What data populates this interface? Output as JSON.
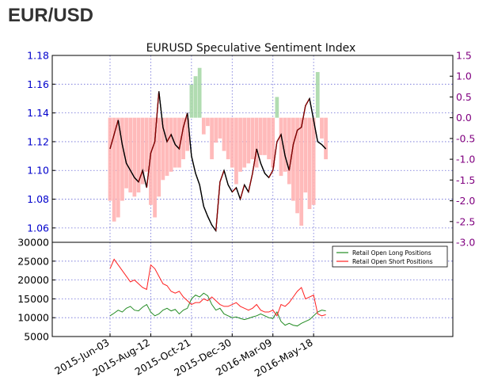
{
  "page": {
    "heading": "EUR/USD"
  },
  "colors": {
    "price": "#000000",
    "price_up": "#8b0000",
    "sentiment_negative": "#ffb3b3",
    "sentiment_positive": "#a8d8a8",
    "long_line": "#228b22",
    "short_line": "#ff2020",
    "left_axis": "#0000cc",
    "right_axis": "#800080",
    "grid": "#6b6bd6"
  },
  "chart_data": [
    {
      "type": "line",
      "title": "EURUSD Speculative Sentiment Index",
      "left_axis": {
        "ticks": [
          "1.18",
          "1.16",
          "1.14",
          "1.12",
          "1.10",
          "1.08",
          "1.06"
        ],
        "ylim": [
          1.05,
          1.18
        ]
      },
      "right_axis": {
        "ticks": [
          "1.5",
          "1.0",
          "0.5",
          "0.0",
          "-0.5",
          "-1.0",
          "-1.5",
          "-2.0",
          "-2.5",
          "-3.0"
        ],
        "ylim": [
          -3.0,
          1.5
        ]
      },
      "grid": true,
      "series": [
        {
          "axis": "left",
          "dates": [
            "2015-06-03",
            "2015-06-10",
            "2015-06-17",
            "2015-06-24",
            "2015-07-01",
            "2015-07-08",
            "2015-07-15",
            "2015-07-22",
            "2015-07-29",
            "2015-08-05",
            "2015-08-12",
            "2015-08-19",
            "2015-08-26",
            "2015-09-02",
            "2015-09-09",
            "2015-09-16",
            "2015-09-23",
            "2015-09-30",
            "2015-10-07",
            "2015-10-14",
            "2015-10-21",
            "2015-10-28",
            "2015-11-04",
            "2015-11-11",
            "2015-11-18",
            "2015-11-25",
            "2015-12-02",
            "2015-12-09",
            "2015-12-16",
            "2015-12-23",
            "2015-12-30",
            "2016-01-06",
            "2016-01-13",
            "2016-01-20",
            "2016-01-27",
            "2016-02-03",
            "2016-02-10",
            "2016-02-17",
            "2016-02-24",
            "2016-03-02",
            "2016-03-09",
            "2016-03-16",
            "2016-03-23",
            "2016-03-30",
            "2016-04-06",
            "2016-04-13",
            "2016-04-20",
            "2016-04-27",
            "2016-05-04",
            "2016-05-11",
            "2016-05-18",
            "2016-05-25",
            "2016-06-01",
            "2016-06-08"
          ],
          "values": [
            1.115,
            1.125,
            1.135,
            1.118,
            1.105,
            1.1,
            1.095,
            1.092,
            1.1,
            1.088,
            1.112,
            1.12,
            1.155,
            1.13,
            1.12,
            1.125,
            1.118,
            1.115,
            1.13,
            1.14,
            1.11,
            1.098,
            1.09,
            1.075,
            1.068,
            1.062,
            1.058,
            1.092,
            1.1,
            1.09,
            1.085,
            1.088,
            1.08,
            1.09,
            1.085,
            1.098,
            1.115,
            1.105,
            1.098,
            1.095,
            1.1,
            1.12,
            1.125,
            1.11,
            1.1,
            1.118,
            1.128,
            1.13,
            1.145,
            1.15,
            1.135,
            1.12,
            1.118,
            1.115
          ]
        },
        {
          "axis": "right",
          "dates": [
            "2015-06-03",
            "2015-06-10",
            "2015-06-17",
            "2015-06-24",
            "2015-07-01",
            "2015-07-08",
            "2015-07-15",
            "2015-07-22",
            "2015-07-29",
            "2015-08-05",
            "2015-08-12",
            "2015-08-19",
            "2015-08-26",
            "2015-09-02",
            "2015-09-09",
            "2015-09-16",
            "2015-09-23",
            "2015-09-30",
            "2015-10-07",
            "2015-10-14",
            "2015-10-21",
            "2015-10-28",
            "2015-11-04",
            "2015-11-11",
            "2015-11-18",
            "2015-11-25",
            "2015-12-02",
            "2015-12-09",
            "2015-12-16",
            "2015-12-23",
            "2015-12-30",
            "2016-01-06",
            "2016-01-13",
            "2016-01-20",
            "2016-01-27",
            "2016-02-03",
            "2016-02-10",
            "2016-02-17",
            "2016-02-24",
            "2016-03-02",
            "2016-03-09",
            "2016-03-16",
            "2016-03-23",
            "2016-03-30",
            "2016-04-06",
            "2016-04-13",
            "2016-04-20",
            "2016-04-27",
            "2016-05-04",
            "2016-05-11",
            "2016-05-18",
            "2016-05-25",
            "2016-06-01",
            "2016-06-08"
          ],
          "values": [
            -2.0,
            -2.5,
            -2.4,
            -2.0,
            -1.7,
            -1.8,
            -1.9,
            -1.8,
            -1.6,
            -1.3,
            -2.1,
            -2.4,
            -1.9,
            -1.5,
            -1.4,
            -1.3,
            -1.2,
            -1.2,
            -1.0,
            -0.8,
            0.8,
            1.0,
            1.2,
            -0.4,
            -0.2,
            -1.0,
            -0.6,
            -0.5,
            -0.8,
            -1.0,
            -1.2,
            -1.6,
            -1.3,
            -1.2,
            -1.1,
            -1.0,
            -1.2,
            -0.9,
            -0.9,
            -1.0,
            -1.2,
            0.5,
            -1.4,
            -1.3,
            -1.6,
            -2.0,
            -2.3,
            -2.6,
            -1.8,
            -2.2,
            -2.1,
            1.1,
            -0.5,
            -1.0
          ]
        }
      ]
    },
    {
      "type": "line",
      "x_tick_labels": [
        "2015-Jun-03",
        "2015-Aug-12",
        "2015-Oct-21",
        "2015-Dec-30",
        "2016-Mar-09",
        "2016-May-18"
      ],
      "y_ticks": [
        "30000",
        "25000",
        "20000",
        "15000",
        "10000",
        "5000"
      ],
      "ylim": [
        5000,
        30000
      ],
      "grid": true,
      "legend_position": "top-right",
      "series": [
        {
          "name": "Retail Open Long Positions",
          "dates": [
            "2015-06-03",
            "2015-06-10",
            "2015-06-17",
            "2015-06-24",
            "2015-07-01",
            "2015-07-08",
            "2015-07-15",
            "2015-07-22",
            "2015-07-29",
            "2015-08-05",
            "2015-08-12",
            "2015-08-19",
            "2015-08-26",
            "2015-09-02",
            "2015-09-09",
            "2015-09-16",
            "2015-09-23",
            "2015-09-30",
            "2015-10-07",
            "2015-10-14",
            "2015-10-21",
            "2015-10-28",
            "2015-11-04",
            "2015-11-11",
            "2015-11-18",
            "2015-11-25",
            "2015-12-02",
            "2015-12-09",
            "2015-12-16",
            "2015-12-23",
            "2015-12-30",
            "2016-01-06",
            "2016-01-13",
            "2016-01-20",
            "2016-01-27",
            "2016-02-03",
            "2016-02-10",
            "2016-02-17",
            "2016-02-24",
            "2016-03-02",
            "2016-03-09",
            "2016-03-16",
            "2016-03-23",
            "2016-03-30",
            "2016-04-06",
            "2016-04-13",
            "2016-04-20",
            "2016-04-27",
            "2016-05-04",
            "2016-05-11",
            "2016-05-18",
            "2016-05-25",
            "2016-06-01",
            "2016-06-08"
          ],
          "values": [
            10500,
            11200,
            12000,
            11500,
            12500,
            13000,
            12000,
            11800,
            12800,
            13500,
            11500,
            10500,
            11000,
            12000,
            12500,
            11800,
            12200,
            11000,
            12000,
            12500,
            15000,
            16000,
            15500,
            16500,
            15800,
            13500,
            12000,
            12500,
            11000,
            10500,
            10000,
            10200,
            9800,
            9500,
            9800,
            10200,
            10500,
            11000,
            10500,
            10000,
            9800,
            11500,
            9000,
            8000,
            8500,
            8000,
            7800,
            8500,
            9000,
            9500,
            10500,
            11500,
            12000,
            11800
          ]
        },
        {
          "name": "Retail Open Short Positions",
          "dates": [
            "2015-06-03",
            "2015-06-10",
            "2015-06-17",
            "2015-06-24",
            "2015-07-01",
            "2015-07-08",
            "2015-07-15",
            "2015-07-22",
            "2015-07-29",
            "2015-08-05",
            "2015-08-12",
            "2015-08-19",
            "2015-08-26",
            "2015-09-02",
            "2015-09-09",
            "2015-09-16",
            "2015-09-23",
            "2015-09-30",
            "2015-10-07",
            "2015-10-14",
            "2015-10-21",
            "2015-10-28",
            "2015-11-04",
            "2015-11-11",
            "2015-11-18",
            "2015-11-25",
            "2015-12-02",
            "2015-12-09",
            "2015-12-16",
            "2015-12-23",
            "2015-12-30",
            "2016-01-06",
            "2016-01-13",
            "2016-01-20",
            "2016-01-27",
            "2016-02-03",
            "2016-02-10",
            "2016-02-17",
            "2016-02-24",
            "2016-03-02",
            "2016-03-09",
            "2016-03-16",
            "2016-03-23",
            "2016-03-30",
            "2016-04-06",
            "2016-04-13",
            "2016-04-20",
            "2016-04-27",
            "2016-05-04",
            "2016-05-11",
            "2016-05-18",
            "2016-05-25",
            "2016-06-01",
            "2016-06-08"
          ],
          "values": [
            23000,
            25500,
            24000,
            22500,
            21000,
            19500,
            20000,
            19000,
            18000,
            17500,
            24000,
            23000,
            21000,
            19000,
            18500,
            17000,
            16500,
            17000,
            15500,
            14500,
            13500,
            14000,
            14000,
            15000,
            14500,
            15500,
            14500,
            13500,
            13000,
            13000,
            13500,
            14000,
            13000,
            12500,
            12000,
            12500,
            13500,
            12000,
            11500,
            11500,
            12000,
            10500,
            13500,
            13000,
            14000,
            15500,
            17000,
            18000,
            15000,
            15500,
            16000,
            11000,
            10500,
            10800
          ]
        }
      ]
    }
  ]
}
